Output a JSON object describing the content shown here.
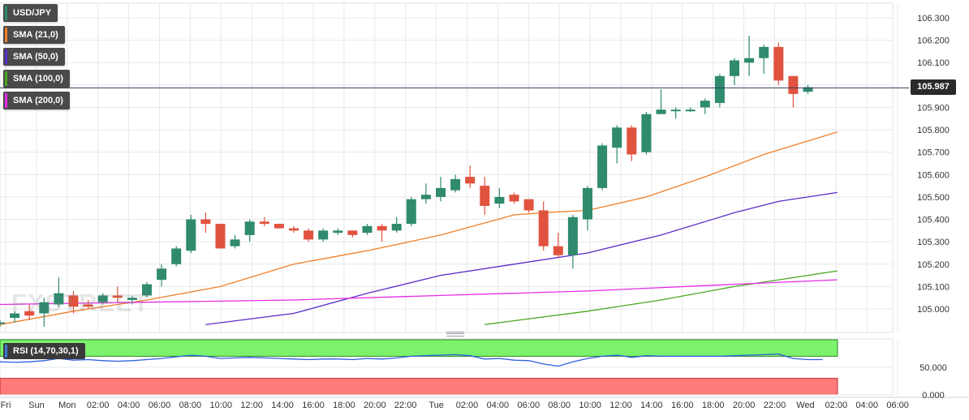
{
  "chart_data": {
    "type": "candlestick",
    "instrument": "USD/JPY",
    "current_price": "105.987",
    "y_ticks": [
      "106.300",
      "106.200",
      "106.100",
      "106.000",
      "105.900",
      "105.800",
      "105.700",
      "105.600",
      "105.500",
      "105.400",
      "105.300",
      "105.200",
      "105.100",
      "105.000"
    ],
    "y_tick_values": [
      106.3,
      106.2,
      106.1,
      106.0,
      105.9,
      105.8,
      105.7,
      105.6,
      105.5,
      105.4,
      105.3,
      105.2,
      105.1,
      105.0
    ],
    "ylim": [
      104.93,
      106.33
    ],
    "x_ticks": [
      "Fri",
      "Sun",
      "Mon",
      "02:00",
      "04:00",
      "06:00",
      "08:00",
      "10:00",
      "12:00",
      "14:00",
      "16:00",
      "18:00",
      "20:00",
      "22:00",
      "Tue",
      "02:00",
      "04:00",
      "06:00",
      "08:00",
      "10:00",
      "12:00",
      "14:00",
      "16:00",
      "18:00",
      "20:00",
      "22:00",
      "Wed",
      "02:00",
      "04:00",
      "06:00"
    ],
    "candles": [
      {
        "o": 104.94,
        "h": 104.95,
        "l": 104.92,
        "c": 104.94
      },
      {
        "o": 104.96,
        "h": 104.99,
        "l": 104.94,
        "c": 104.98
      },
      {
        "o": 104.99,
        "h": 105.02,
        "l": 104.95,
        "c": 104.97
      },
      {
        "o": 104.98,
        "h": 105.05,
        "l": 104.92,
        "c": 105.03
      },
      {
        "o": 105.02,
        "h": 105.14,
        "l": 105.01,
        "c": 105.07
      },
      {
        "o": 105.06,
        "h": 105.08,
        "l": 104.98,
        "c": 105.01
      },
      {
        "o": 105.02,
        "h": 105.04,
        "l": 105.0,
        "c": 105.01
      },
      {
        "o": 105.03,
        "h": 105.07,
        "l": 105.02,
        "c": 105.06
      },
      {
        "o": 105.06,
        "h": 105.1,
        "l": 105.03,
        "c": 105.05
      },
      {
        "o": 105.04,
        "h": 105.06,
        "l": 105.02,
        "c": 105.05
      },
      {
        "o": 105.06,
        "h": 105.12,
        "l": 105.05,
        "c": 105.11
      },
      {
        "o": 105.13,
        "h": 105.2,
        "l": 105.1,
        "c": 105.18
      },
      {
        "o": 105.2,
        "h": 105.28,
        "l": 105.19,
        "c": 105.27
      },
      {
        "o": 105.26,
        "h": 105.42,
        "l": 105.25,
        "c": 105.4
      },
      {
        "o": 105.4,
        "h": 105.43,
        "l": 105.34,
        "c": 105.38
      },
      {
        "o": 105.38,
        "h": 105.38,
        "l": 105.27,
        "c": 105.27
      },
      {
        "o": 105.28,
        "h": 105.33,
        "l": 105.27,
        "c": 105.31
      },
      {
        "o": 105.33,
        "h": 105.4,
        "l": 105.3,
        "c": 105.39
      },
      {
        "o": 105.39,
        "h": 105.41,
        "l": 105.37,
        "c": 105.38
      },
      {
        "o": 105.38,
        "h": 105.38,
        "l": 105.36,
        "c": 105.36
      },
      {
        "o": 105.36,
        "h": 105.37,
        "l": 105.34,
        "c": 105.35
      },
      {
        "o": 105.35,
        "h": 105.36,
        "l": 105.3,
        "c": 105.31
      },
      {
        "o": 105.31,
        "h": 105.36,
        "l": 105.3,
        "c": 105.35
      },
      {
        "o": 105.34,
        "h": 105.36,
        "l": 105.33,
        "c": 105.35
      },
      {
        "o": 105.35,
        "h": 105.35,
        "l": 105.32,
        "c": 105.33
      },
      {
        "o": 105.34,
        "h": 105.38,
        "l": 105.33,
        "c": 105.37
      },
      {
        "o": 105.37,
        "h": 105.38,
        "l": 105.3,
        "c": 105.35
      },
      {
        "o": 105.35,
        "h": 105.41,
        "l": 105.34,
        "c": 105.38
      },
      {
        "o": 105.38,
        "h": 105.5,
        "l": 105.37,
        "c": 105.49
      },
      {
        "o": 105.49,
        "h": 105.56,
        "l": 105.47,
        "c": 105.51
      },
      {
        "o": 105.5,
        "h": 105.59,
        "l": 105.48,
        "c": 105.54
      },
      {
        "o": 105.53,
        "h": 105.6,
        "l": 105.52,
        "c": 105.58
      },
      {
        "o": 105.59,
        "h": 105.64,
        "l": 105.54,
        "c": 105.56
      },
      {
        "o": 105.55,
        "h": 105.59,
        "l": 105.42,
        "c": 105.46
      },
      {
        "o": 105.47,
        "h": 105.54,
        "l": 105.45,
        "c": 105.5
      },
      {
        "o": 105.51,
        "h": 105.52,
        "l": 105.47,
        "c": 105.48
      },
      {
        "o": 105.49,
        "h": 105.49,
        "l": 105.43,
        "c": 105.44
      },
      {
        "o": 105.44,
        "h": 105.48,
        "l": 105.26,
        "c": 105.28
      },
      {
        "o": 105.28,
        "h": 105.34,
        "l": 105.23,
        "c": 105.24
      },
      {
        "o": 105.24,
        "h": 105.42,
        "l": 105.18,
        "c": 105.41
      },
      {
        "o": 105.4,
        "h": 105.55,
        "l": 105.35,
        "c": 105.54
      },
      {
        "o": 105.54,
        "h": 105.74,
        "l": 105.53,
        "c": 105.73
      },
      {
        "o": 105.72,
        "h": 105.82,
        "l": 105.65,
        "c": 105.81
      },
      {
        "o": 105.81,
        "h": 105.82,
        "l": 105.66,
        "c": 105.69
      },
      {
        "o": 105.7,
        "h": 105.88,
        "l": 105.69,
        "c": 105.87
      },
      {
        "o": 105.87,
        "h": 105.98,
        "l": 105.87,
        "c": 105.89
      },
      {
        "o": 105.89,
        "h": 105.9,
        "l": 105.85,
        "c": 105.89
      },
      {
        "o": 105.89,
        "h": 105.9,
        "l": 105.88,
        "c": 105.89
      },
      {
        "o": 105.9,
        "h": 105.94,
        "l": 105.87,
        "c": 105.93
      },
      {
        "o": 105.92,
        "h": 106.05,
        "l": 105.9,
        "c": 106.04
      },
      {
        "o": 106.04,
        "h": 106.12,
        "l": 106.0,
        "c": 106.11
      },
      {
        "o": 106.1,
        "h": 106.22,
        "l": 106.04,
        "c": 106.12
      },
      {
        "o": 106.12,
        "h": 106.18,
        "l": 106.05,
        "c": 106.17
      },
      {
        "o": 106.17,
        "h": 106.19,
        "l": 106.0,
        "c": 106.02
      },
      {
        "o": 106.04,
        "h": 106.04,
        "l": 105.9,
        "c": 105.96
      },
      {
        "o": 105.97,
        "h": 106.0,
        "l": 105.96,
        "c": 105.99
      }
    ],
    "series": [
      {
        "name": "SMA (21,0)",
        "color": "#f07f28",
        "points": [
          [
            0,
            104.93
          ],
          [
            5,
            104.99
          ],
          [
            10,
            105.04
          ],
          [
            15,
            105.1
          ],
          [
            20,
            105.2
          ],
          [
            25,
            105.26
          ],
          [
            30,
            105.33
          ],
          [
            35,
            105.42
          ],
          [
            37,
            105.43
          ],
          [
            40,
            105.44
          ],
          [
            44,
            105.5
          ],
          [
            48,
            105.59
          ],
          [
            52,
            105.69
          ],
          [
            55,
            105.75
          ],
          [
            57,
            105.79
          ]
        ]
      },
      {
        "name": "SMA (50,0)",
        "color": "#5a2cc8",
        "points": [
          [
            14,
            104.93
          ],
          [
            20,
            104.98
          ],
          [
            25,
            105.07
          ],
          [
            30,
            105.15
          ],
          [
            35,
            105.2
          ],
          [
            40,
            105.25
          ],
          [
            45,
            105.33
          ],
          [
            50,
            105.43
          ],
          [
            53,
            105.48
          ],
          [
            57,
            105.52
          ]
        ]
      },
      {
        "name": "SMA (100,0)",
        "color": "#48a820",
        "points": [
          [
            33,
            104.93
          ],
          [
            40,
            104.99
          ],
          [
            45,
            105.04
          ],
          [
            50,
            105.1
          ],
          [
            55,
            105.15
          ],
          [
            57,
            105.17
          ]
        ]
      },
      {
        "name": "SMA (200,0)",
        "color": "#e52ce5",
        "points": [
          [
            0,
            105.02
          ],
          [
            10,
            105.03
          ],
          [
            20,
            105.04
          ],
          [
            30,
            105.06
          ],
          [
            40,
            105.08
          ],
          [
            50,
            105.11
          ],
          [
            57,
            105.13
          ]
        ]
      }
    ],
    "rsi": {
      "label": "RSI (14,70,30,1)",
      "ticks": [
        "50.000",
        "0.000"
      ],
      "tick_values": [
        50,
        0
      ],
      "upper": 70,
      "lower": 30,
      "values": [
        60,
        59,
        60,
        62,
        66,
        63,
        64,
        62,
        61,
        62,
        64,
        66,
        69,
        72,
        70,
        66,
        67,
        68,
        67,
        66,
        65,
        64,
        65,
        65,
        64,
        66,
        65,
        67,
        70,
        71,
        72,
        73,
        71,
        65,
        66,
        63,
        62,
        56,
        52,
        60,
        66,
        70,
        72,
        68,
        71,
        70,
        70,
        70,
        70,
        70,
        71,
        72,
        73,
        74,
        66,
        64,
        64
      ]
    },
    "colors": {
      "up": "#2f8a6e",
      "down": "#e0533f",
      "price_line": "#303b5a",
      "grid": "#e6e8eb"
    }
  },
  "legend": [
    {
      "label": "USD/JPY",
      "color": "#2f8a6e"
    },
    {
      "label": "SMA (21,0)",
      "color": "#f07f28"
    },
    {
      "label": "SMA (50,0)",
      "color": "#5a2cc8"
    },
    {
      "label": "SMA (100,0)",
      "color": "#48a820"
    },
    {
      "label": "SMA (200,0)",
      "color": "#e52ce5"
    }
  ],
  "watermark": "FXSTREET"
}
